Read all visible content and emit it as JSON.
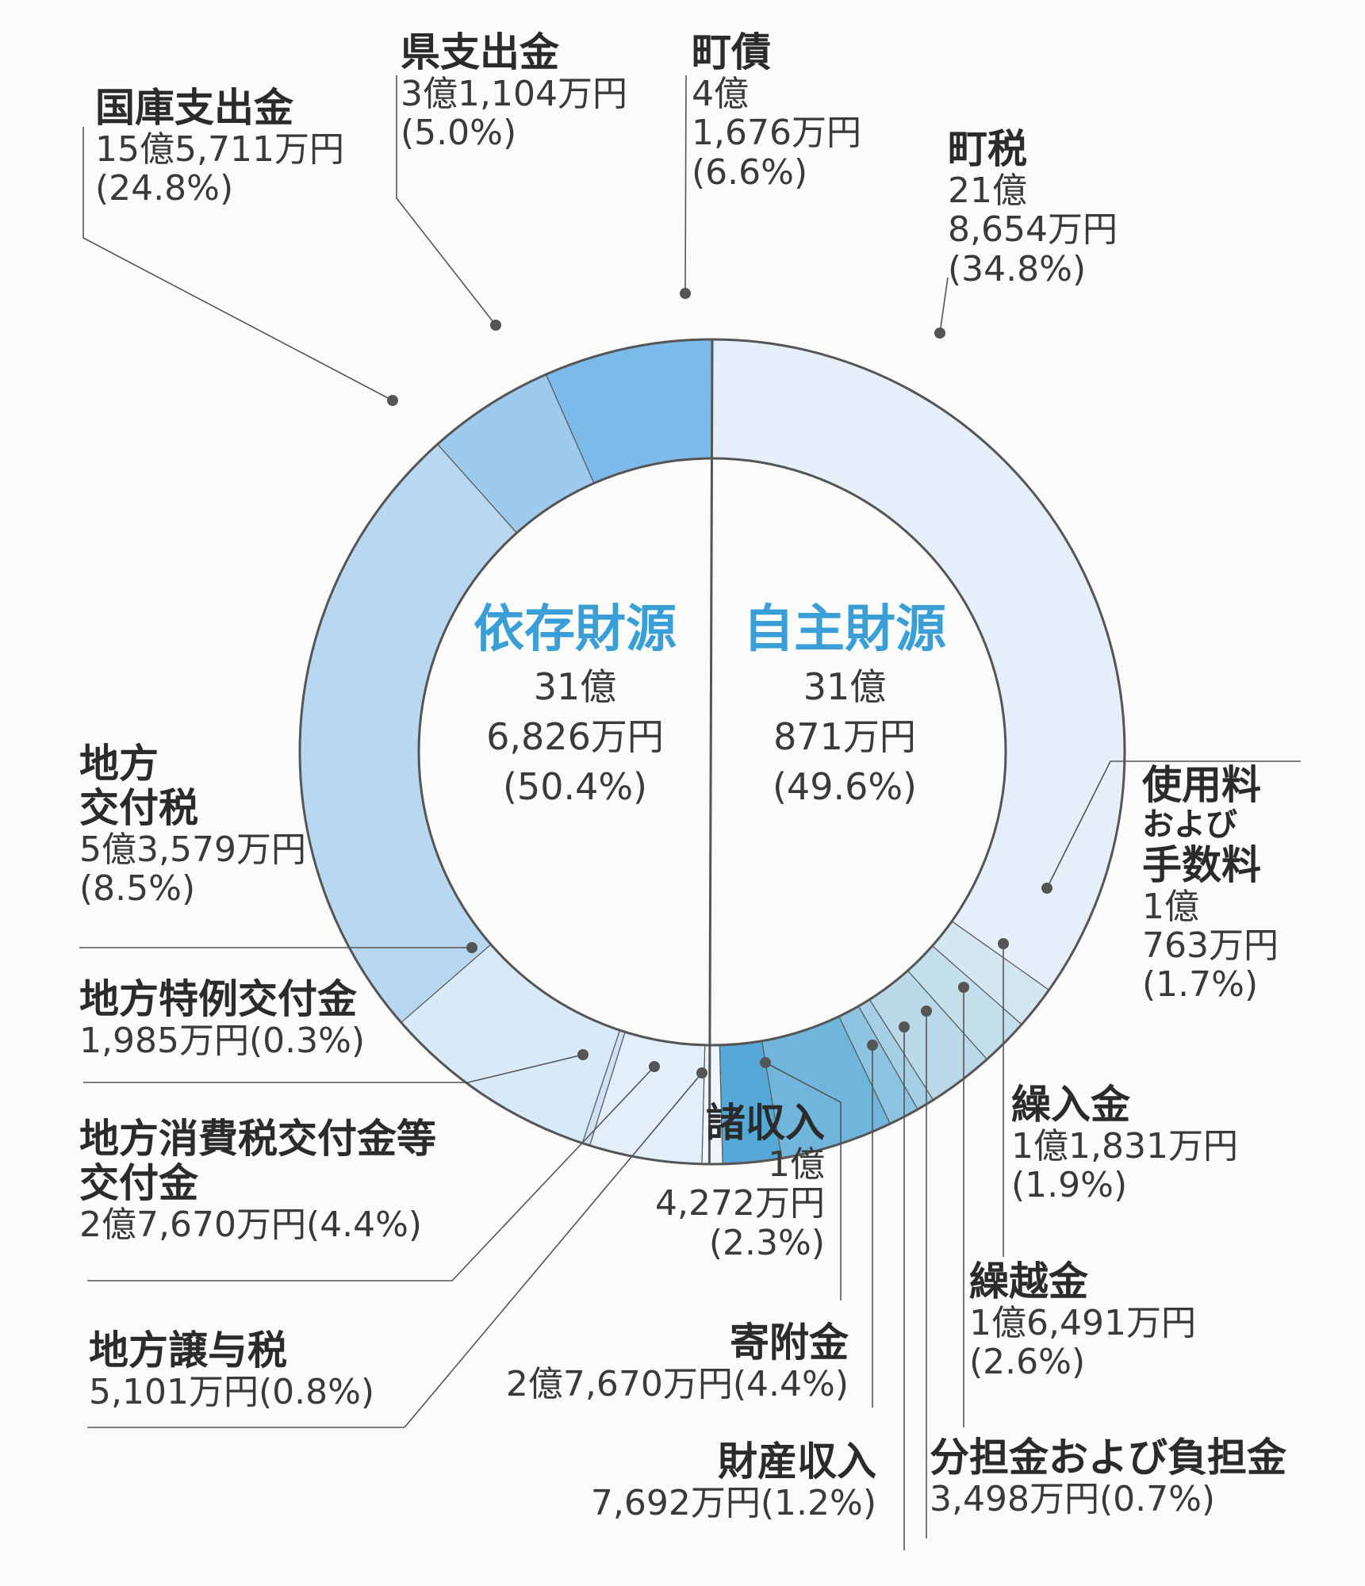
{
  "chart_data": {
    "type": "pie",
    "categories": [
      "町税",
      "使用料および手数料",
      "繰入金",
      "繰越金",
      "分担金および負担金",
      "財産収入",
      "寄附金",
      "諸収入",
      "地方譲与税",
      "地方消費税交付金等交付金",
      "地方特例交付金",
      "地方交付税",
      "国庫支出金",
      "県支出金",
      "町債"
    ],
    "values": [
      34.8,
      1.7,
      1.9,
      2.6,
      0.7,
      1.2,
      4.4,
      2.3,
      0.8,
      4.4,
      0.3,
      8.5,
      24.8,
      5.0,
      6.6
    ],
    "colors": [
      "#e4eff9",
      "#d3e7f1",
      "#c4dfec",
      "#b9d8e8",
      "#a4cfe4",
      "#8cc4e1",
      "#6fb5dc",
      "#56a8d6",
      "#eef5fc",
      "#e2eef9",
      "#cde3f5",
      "#d8e9f8",
      "#b8d7f1",
      "#9ecaee",
      "#7cbbe9"
    ],
    "groups": [
      {
        "name": "依存財源",
        "amount_oku": "31",
        "amount_man": "6,826",
        "pct": "(50.4%)"
      },
      {
        "name": "自主財源",
        "amount_oku": "31",
        "amount_man": "871",
        "pct": "(49.6%)"
      }
    ]
  },
  "labels": {
    "choze": {
      "name": "町税",
      "amt1": "21億",
      "amt2": "8,654万円",
      "pct": "(34.8%)"
    },
    "shiyoryo": {
      "name1": "使用料",
      "name2": "および",
      "name3": "手数料",
      "amt1": "1億",
      "amt2": "763万円",
      "pct": "(1.7%)"
    },
    "kurire": {
      "name": "繰入金",
      "amt": "1億1,831万円",
      "pct": "(1.9%)"
    },
    "kurikoshi": {
      "name": "繰越金",
      "amt": "1億6,491万円",
      "pct": "(2.6%)"
    },
    "buntan": {
      "name": "分担金および負担金",
      "amt": "3,498万円(0.7%)"
    },
    "zaisan": {
      "name": "財産収入",
      "amt": "7,692万円(1.2%)"
    },
    "kifu": {
      "name": "寄附金",
      "amt": "2億7,670万円(4.4%)"
    },
    "shoshu": {
      "name": "諸収入",
      "amt1": "1億",
      "amt2": "4,272万円",
      "pct": "(2.3%)"
    },
    "joyo": {
      "name": "地方譲与税",
      "amt": "5,101万円(0.8%)"
    },
    "shohi": {
      "name1": "地方消費税交付金等",
      "name2": "交付金",
      "amt": "2億7,670万円(4.4%)"
    },
    "tokurei": {
      "name": "地方特例交付金",
      "amt": "1,985万円(0.3%)"
    },
    "kofuzei": {
      "name1": "地方",
      "name2": "交付税",
      "amt": "5億3,579万円",
      "pct": "(8.5%)"
    },
    "kokko": {
      "name": "国庫支出金",
      "amt": "15億5,711万円",
      "pct": "(24.8%)"
    },
    "ken": {
      "name": "県支出金",
      "amt": "3億1,104万円",
      "pct": "(5.0%)"
    },
    "chosai": {
      "name": "町債",
      "amt1": "4億",
      "amt2": "1,676万円",
      "pct": "(6.6%)"
    }
  }
}
